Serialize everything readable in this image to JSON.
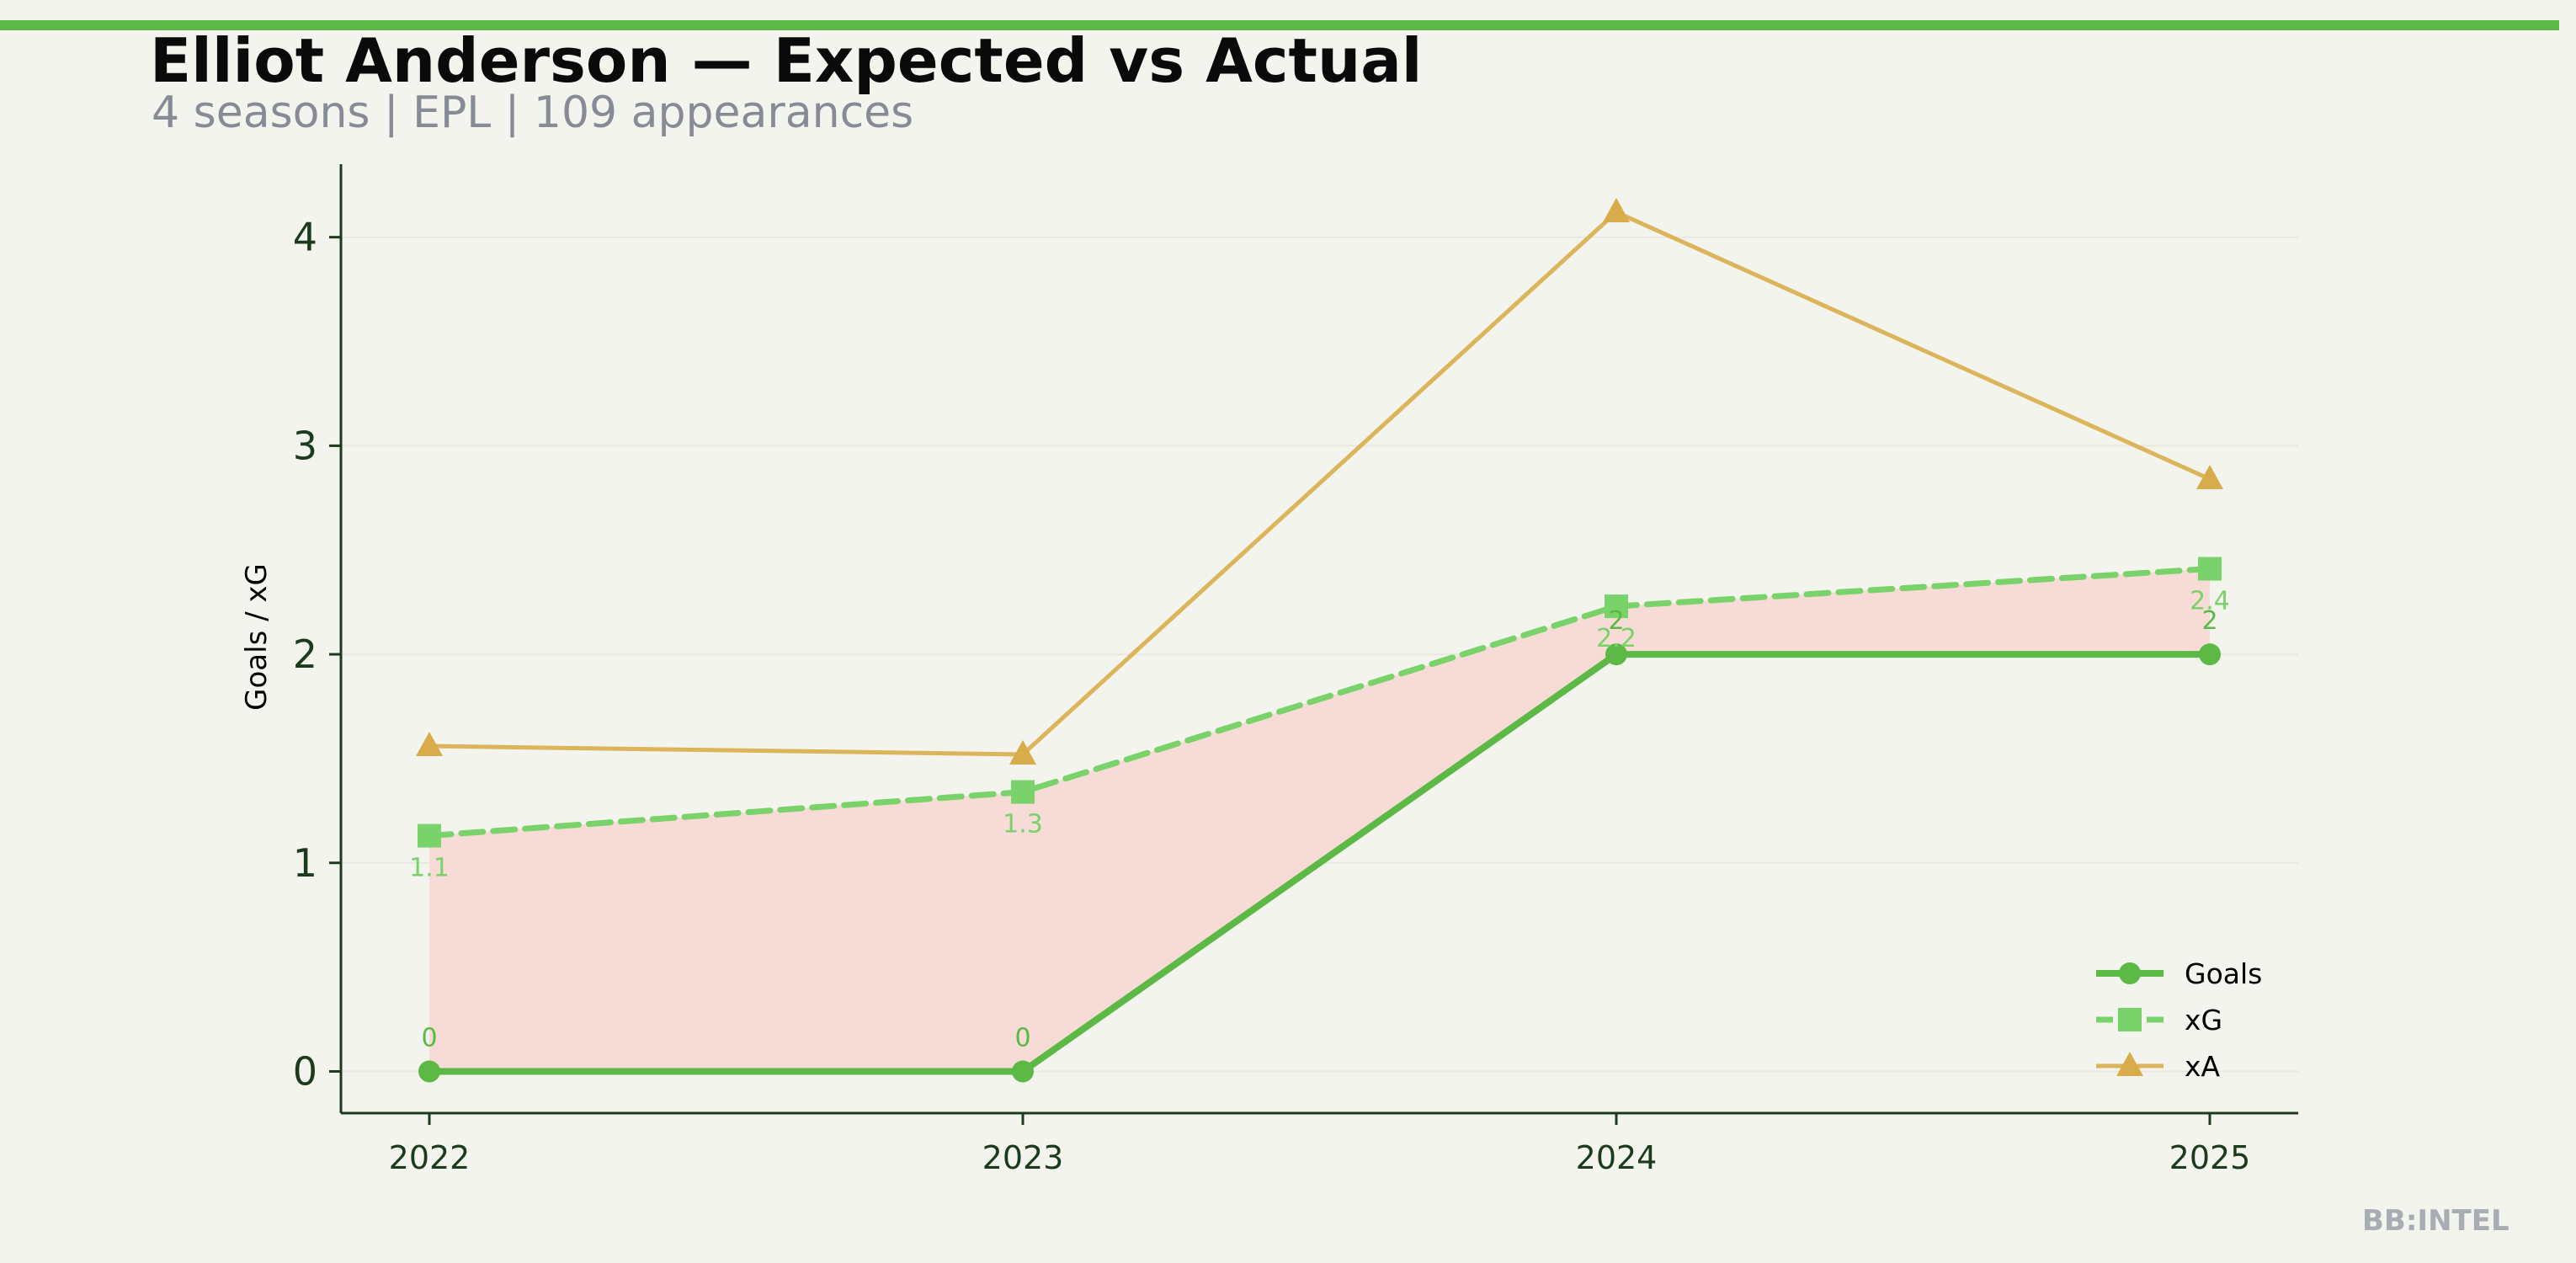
{
  "header": {
    "title": "Elliot Anderson — Expected vs Actual",
    "subtitle": "4 seasons | EPL | 109 appearances"
  },
  "watermark": "BB:INTEL",
  "colors": {
    "accent_bar": "#5cb946",
    "goals": "#5cb946",
    "xg": "#7ad26a",
    "xa": "#dcb45a",
    "fill": "#f5d9d4",
    "axis": "#1c3a1c",
    "background": "#f4f4ef"
  },
  "chart_data": {
    "type": "line",
    "categories": [
      "2022",
      "2023",
      "2024",
      "2025"
    ],
    "ylabel": "Goals / xG",
    "ylim": [
      -0.2,
      4.35
    ],
    "yticks": [
      "0",
      "1",
      "2",
      "3",
      "4"
    ],
    "grid": "horizontal, faint",
    "legend_position": "bottom-right",
    "series": [
      {
        "name": "Goals",
        "values": [
          0,
          0,
          2,
          2
        ],
        "labels": [
          "0",
          "0",
          "2",
          "2"
        ],
        "marker": "circle",
        "style": "solid"
      },
      {
        "name": "xG",
        "values": [
          1.13,
          1.34,
          2.23,
          2.41
        ],
        "labels": [
          "1.1",
          "1.3",
          "2.2",
          "2.4"
        ],
        "marker": "square",
        "style": "dashed"
      },
      {
        "name": "xA",
        "values": [
          1.56,
          1.52,
          4.12,
          2.84
        ],
        "marker": "triangle",
        "style": "solid"
      }
    ],
    "fill_between": [
      "Goals",
      "xG"
    ]
  }
}
